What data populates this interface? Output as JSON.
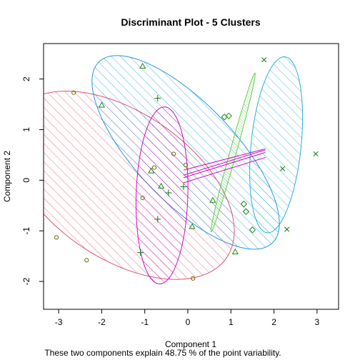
{
  "chart_data": {
    "type": "scatter",
    "title": "Discriminant Plot - 5 Clusters",
    "xlabel": "Component 1",
    "ylabel": "Component 2",
    "footnote": "These two components explain 48.75 % of the point variability.",
    "xlim": [
      -3.35,
      3.5
    ],
    "ylim": [
      -2.55,
      2.7
    ],
    "xticks": [
      -3,
      -2,
      -1,
      0,
      1,
      2,
      3
    ],
    "yticks": [
      -2,
      -1,
      0,
      1,
      2
    ],
    "grid": false,
    "clusters": [
      {
        "id": 1,
        "color": "#DF536B",
        "symbol": "circle",
        "ellipse": {
          "cx": -1.55,
          "cy": -0.1,
          "a": 2.85,
          "b": 1.5,
          "angle_deg": -27
        },
        "points": [
          [
            -2.65,
            1.73
          ],
          [
            -3.05,
            -1.13
          ],
          [
            -2.35,
            -1.58
          ],
          [
            0.12,
            -1.94
          ],
          [
            -1.05,
            -0.35
          ],
          [
            -0.78,
            0.25
          ],
          [
            -0.33,
            0.52
          ],
          [
            -0.05,
            0.3
          ]
        ]
      },
      {
        "id": 2,
        "color": "#2297E6",
        "symbol": "triangle",
        "ellipse": {
          "cx": -0.05,
          "cy": 0.55,
          "a": 2.7,
          "b": 1.05,
          "angle_deg": -40
        },
        "points": [
          [
            -1.05,
            2.25
          ],
          [
            -2.0,
            1.48
          ],
          [
            -0.85,
            0.18
          ],
          [
            -0.62,
            -0.12
          ],
          [
            0.58,
            -0.4
          ],
          [
            0.1,
            -0.92
          ],
          [
            1.1,
            -1.42
          ]
        ]
      },
      {
        "id": 3,
        "color": "#28B0D9",
        "symbol": "cross",
        "ellipse": {
          "cx": 2.05,
          "cy": 0.7,
          "a": 1.75,
          "b": 0.58,
          "angle_deg": 83
        },
        "points": [
          [
            1.77,
            2.38
          ],
          [
            2.2,
            0.23
          ],
          [
            2.97,
            0.52
          ],
          [
            2.3,
            -0.97
          ]
        ]
      },
      {
        "id": 4,
        "color": "#61D04F",
        "symbol": "diamond",
        "ellipse": {
          "cx": 1.05,
          "cy": 0.55,
          "a": 1.65,
          "b": 0.075,
          "angle_deg": 72
        },
        "points": [
          [
            0.85,
            1.25
          ],
          [
            0.95,
            1.27
          ],
          [
            1.3,
            -0.47
          ],
          [
            1.35,
            -0.62
          ],
          [
            1.5,
            -0.98
          ]
        ]
      },
      {
        "id": 5,
        "color": "#CD0BBC",
        "symbol": "plus",
        "ellipse": {
          "cx": -0.6,
          "cy": -0.3,
          "a": 1.75,
          "b": 0.6,
          "angle_deg": 88
        },
        "points": [
          [
            -0.7,
            1.62
          ],
          [
            -0.45,
            -0.25
          ],
          [
            -0.1,
            -0.13
          ],
          [
            -0.7,
            -0.77
          ],
          [
            -1.1,
            -1.43
          ]
        ]
      }
    ],
    "magenta_links": [
      [
        [
          -0.1,
          0.05
        ],
        [
          1.8,
          0.55
        ]
      ],
      [
        [
          -0.1,
          0.1
        ],
        [
          1.8,
          0.6
        ]
      ],
      [
        [
          -0.1,
          0.2
        ],
        [
          1.8,
          0.62
        ]
      ],
      [
        [
          -0.1,
          -0.05
        ],
        [
          1.8,
          0.45
        ]
      ]
    ]
  }
}
